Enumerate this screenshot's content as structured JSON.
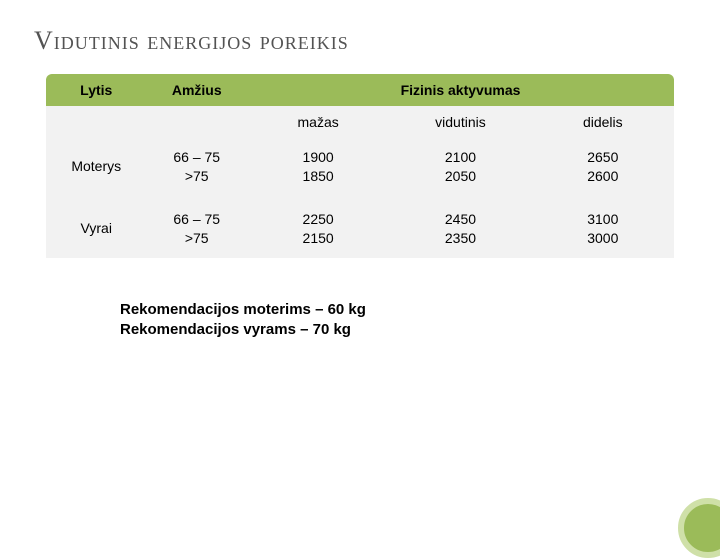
{
  "title": "Vidutinis energijos poreikis",
  "table": {
    "header": {
      "col1": "Lytis",
      "col2": "Amžius",
      "spanLabel": "Fizinis aktyvumas"
    },
    "subheader": {
      "c3": "mažas",
      "c4": "vidutinis",
      "c5": "didelis"
    },
    "rows": [
      {
        "lytis": "Moterys",
        "amzius": "66 – 75\n>75",
        "mazas": "1900\n1850",
        "vidutinis": "2100\n2050",
        "didelis": "2650\n2600"
      },
      {
        "lytis": "Vyrai",
        "amzius": "66 – 75\n>75",
        "mazas": "2250\n2150",
        "vidutinis": "2450\n2350",
        "didelis": "3100\n3000"
      }
    ]
  },
  "notes": {
    "line1": "Rekomendacijos moterims – 60 kg",
    "line2": "Rekomendacijos vyrams – 70 kg"
  },
  "style": {
    "accent": "#9bbb59",
    "rowBg": "#f2f2f2",
    "titleColor": "#535353"
  }
}
